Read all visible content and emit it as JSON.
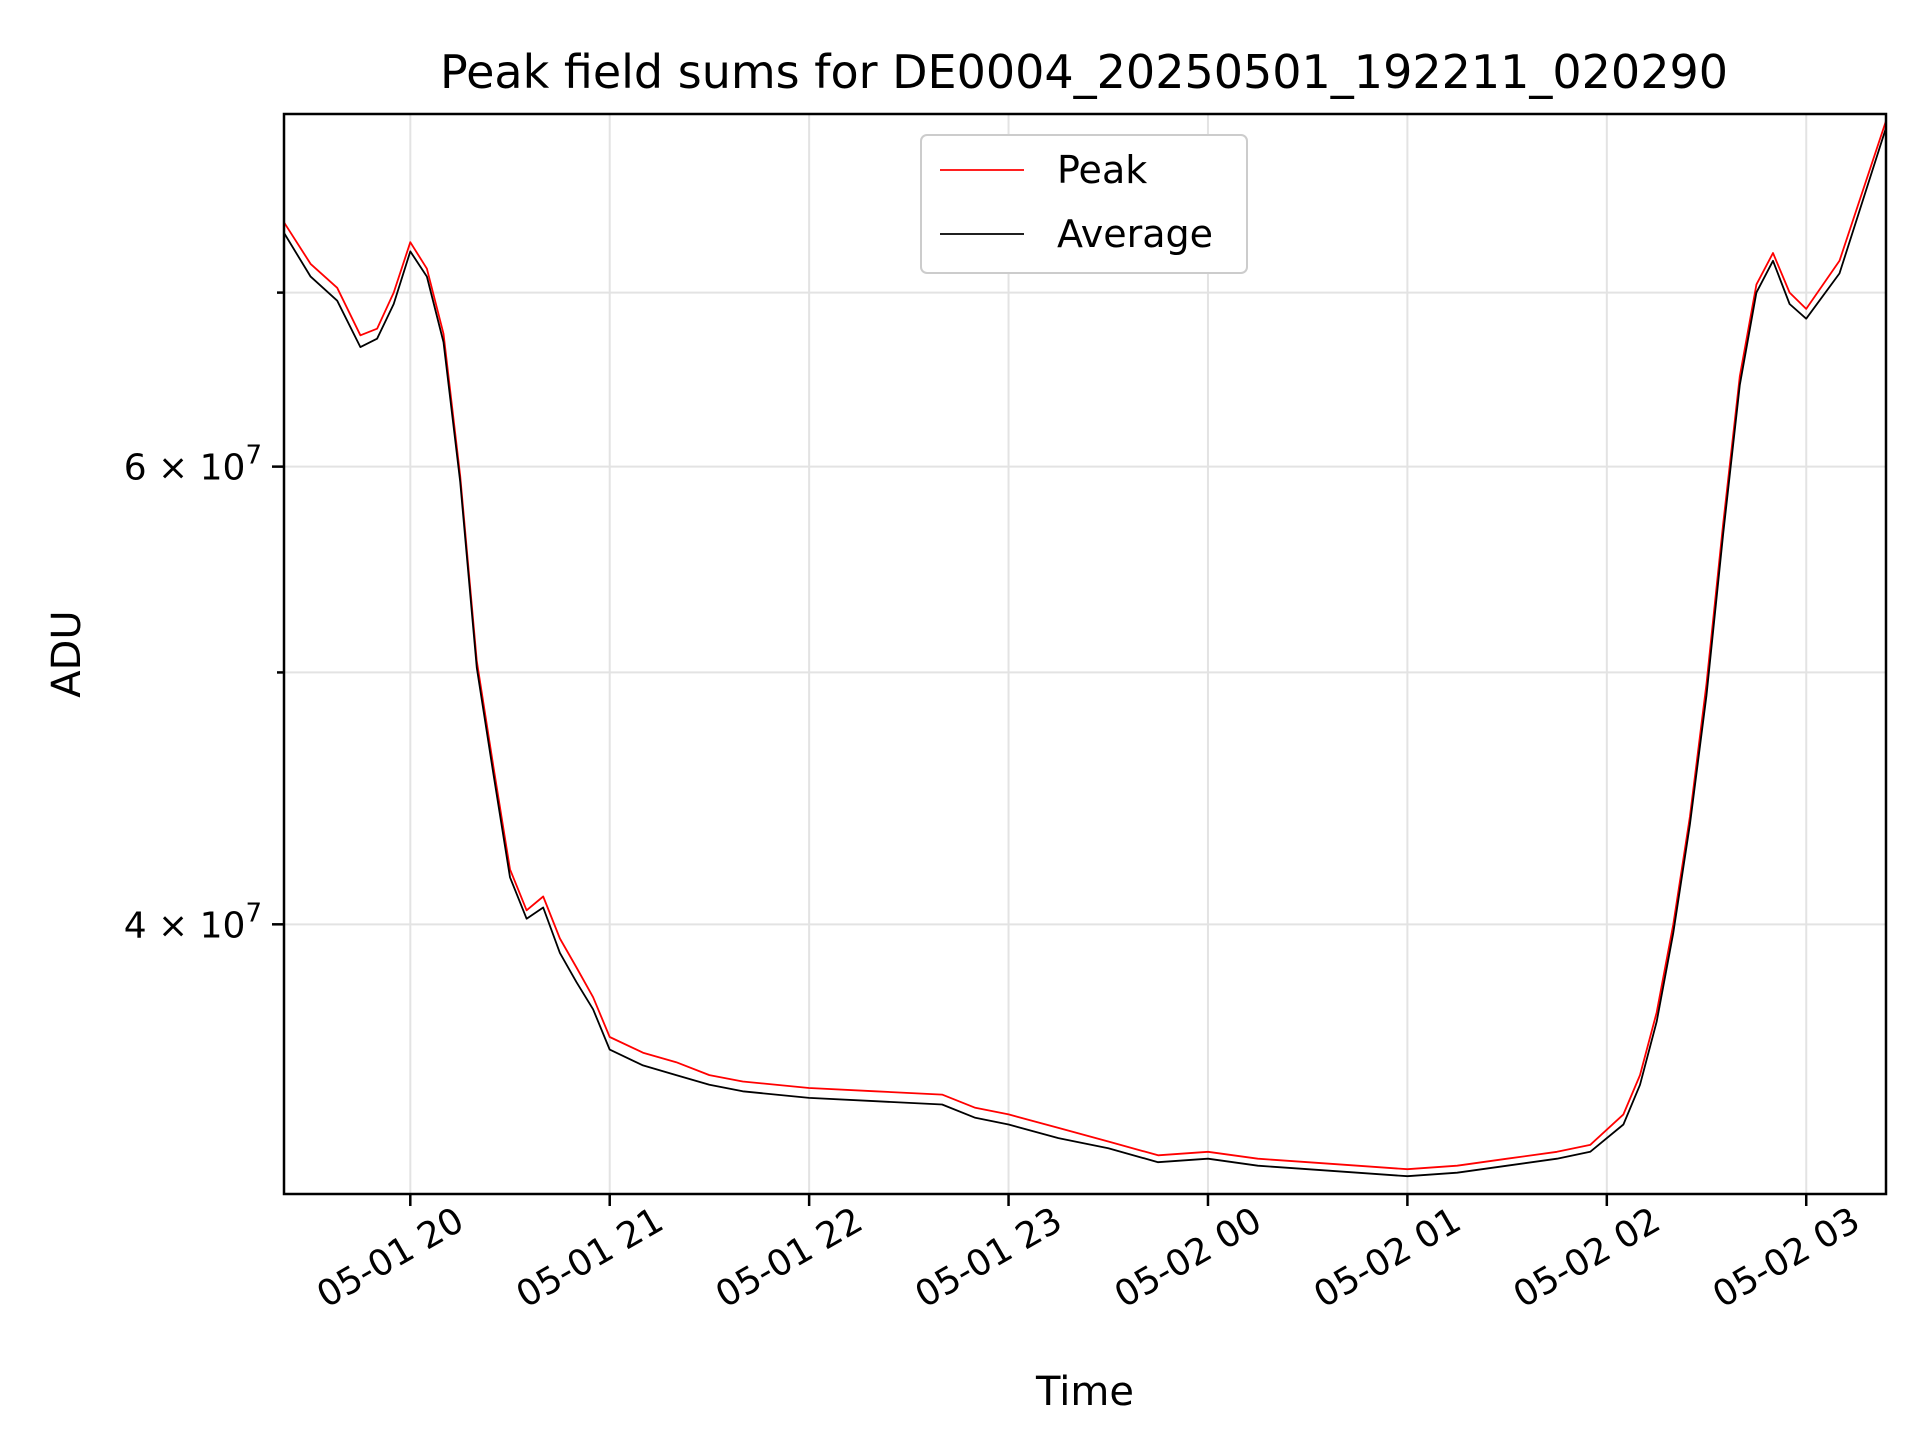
{
  "chart_data": {
    "type": "line",
    "title": "Peak field sums for DE0004_20250501_192211_020290",
    "xlabel": "Time",
    "ylabel": "ADU",
    "y_scale": "log",
    "ylim": [
      31500000,
      82000000
    ],
    "xlim": [
      "2025-05-01 19:22",
      "2025-05-02 03:24"
    ],
    "x_tick_labels": [
      "05-01 20",
      "05-01 21",
      "05-01 22",
      "05-01 23",
      "05-02 00",
      "05-02 01",
      "05-02 02",
      "05-02 03"
    ],
    "x_tick_values": [
      "2025-05-01 20:00",
      "2025-05-01 21:00",
      "2025-05-01 22:00",
      "2025-05-01 23:00",
      "2025-05-02 00:00",
      "2025-05-02 01:00",
      "2025-05-02 02:00",
      "2025-05-02 03:00"
    ],
    "y_tick_labels": [
      "4 × 10",
      "6 × 10"
    ],
    "y_tick_exponent": "7",
    "y_tick_values": [
      40000000,
      60000000
    ],
    "y_minor_tick_values": [
      50000000,
      70000000
    ],
    "grid": true,
    "legend_position": "upper center",
    "series": [
      {
        "name": "Peak",
        "color": "#ff0000",
        "x": [
          "2025-05-01 19:22",
          "2025-05-01 19:30",
          "2025-05-01 19:38",
          "2025-05-01 19:45",
          "2025-05-01 19:50",
          "2025-05-01 19:55",
          "2025-05-01 20:00",
          "2025-05-01 20:05",
          "2025-05-01 20:10",
          "2025-05-01 20:15",
          "2025-05-01 20:20",
          "2025-05-01 20:25",
          "2025-05-01 20:30",
          "2025-05-01 20:35",
          "2025-05-01 20:40",
          "2025-05-01 20:45",
          "2025-05-01 20:50",
          "2025-05-01 20:55",
          "2025-05-01 21:00",
          "2025-05-01 21:10",
          "2025-05-01 21:20",
          "2025-05-01 21:30",
          "2025-05-01 21:40",
          "2025-05-01 22:00",
          "2025-05-01 22:20",
          "2025-05-01 22:40",
          "2025-05-01 22:50",
          "2025-05-01 23:00",
          "2025-05-01 23:15",
          "2025-05-01 23:30",
          "2025-05-01 23:45",
          "2025-05-02 00:00",
          "2025-05-02 00:15",
          "2025-05-02 00:30",
          "2025-05-02 00:45",
          "2025-05-02 01:00",
          "2025-05-02 01:15",
          "2025-05-02 01:30",
          "2025-05-02 01:45",
          "2025-05-02 01:55",
          "2025-05-02 02:05",
          "2025-05-02 02:10",
          "2025-05-02 02:15",
          "2025-05-02 02:20",
          "2025-05-02 02:25",
          "2025-05-02 02:30",
          "2025-05-02 02:35",
          "2025-05-02 02:40",
          "2025-05-02 02:45",
          "2025-05-02 02:50",
          "2025-05-02 02:55",
          "2025-05-02 03:00",
          "2025-05-02 03:10",
          "2025-05-02 03:24"
        ],
        "values": [
          74500000,
          71800000,
          70300000,
          67400000,
          67800000,
          70000000,
          73200000,
          71500000,
          67500000,
          59500000,
          50500000,
          46000000,
          42000000,
          40500000,
          41000000,
          39500000,
          38500000,
          37500000,
          36200000,
          35700000,
          35400000,
          35000000,
          34800000,
          34600000,
          34500000,
          34400000,
          34000000,
          33800000,
          33400000,
          33000000,
          32600000,
          32700000,
          32500000,
          32400000,
          32300000,
          32200000,
          32300000,
          32500000,
          32700000,
          32900000,
          33800000,
          35000000,
          37000000,
          40000000,
          44000000,
          49500000,
          57000000,
          65000000,
          70500000,
          72500000,
          70000000,
          69000000,
          72000000,
          81500000
        ]
      },
      {
        "name": "Average",
        "color": "#000000",
        "x": [
          "2025-05-01 19:22",
          "2025-05-01 19:30",
          "2025-05-01 19:38",
          "2025-05-01 19:45",
          "2025-05-01 19:50",
          "2025-05-01 19:55",
          "2025-05-01 20:00",
          "2025-05-01 20:05",
          "2025-05-01 20:10",
          "2025-05-01 20:15",
          "2025-05-01 20:20",
          "2025-05-01 20:25",
          "2025-05-01 20:30",
          "2025-05-01 20:35",
          "2025-05-01 20:40",
          "2025-05-01 20:45",
          "2025-05-01 20:50",
          "2025-05-01 20:55",
          "2025-05-01 21:00",
          "2025-05-01 21:10",
          "2025-05-01 21:20",
          "2025-05-01 21:30",
          "2025-05-01 21:40",
          "2025-05-01 22:00",
          "2025-05-01 22:20",
          "2025-05-01 22:40",
          "2025-05-01 22:50",
          "2025-05-01 23:00",
          "2025-05-01 23:15",
          "2025-05-01 23:30",
          "2025-05-01 23:45",
          "2025-05-02 00:00",
          "2025-05-02 00:15",
          "2025-05-02 00:30",
          "2025-05-02 00:45",
          "2025-05-02 01:00",
          "2025-05-02 01:15",
          "2025-05-02 01:30",
          "2025-05-02 01:45",
          "2025-05-02 01:55",
          "2025-05-02 02:05",
          "2025-05-02 02:10",
          "2025-05-02 02:15",
          "2025-05-02 02:20",
          "2025-05-02 02:25",
          "2025-05-02 02:30",
          "2025-05-02 02:35",
          "2025-05-02 02:40",
          "2025-05-02 02:45",
          "2025-05-02 02:50",
          "2025-05-02 02:55",
          "2025-05-02 03:00",
          "2025-05-02 03:10",
          "2025-05-02 03:24"
        ],
        "values": [
          73800000,
          71000000,
          69500000,
          66700000,
          67200000,
          69300000,
          72600000,
          71000000,
          67000000,
          59200000,
          50200000,
          45700000,
          41700000,
          40200000,
          40600000,
          39000000,
          38000000,
          37100000,
          35800000,
          35300000,
          35000000,
          34700000,
          34500000,
          34300000,
          34200000,
          34100000,
          33700000,
          33500000,
          33100000,
          32800000,
          32400000,
          32500000,
          32300000,
          32200000,
          32100000,
          32000000,
          32100000,
          32300000,
          32500000,
          32700000,
          33500000,
          34700000,
          36700000,
          39700000,
          43700000,
          49000000,
          56500000,
          64500000,
          70000000,
          72000000,
          69300000,
          68400000,
          71200000,
          81000000
        ]
      }
    ]
  }
}
